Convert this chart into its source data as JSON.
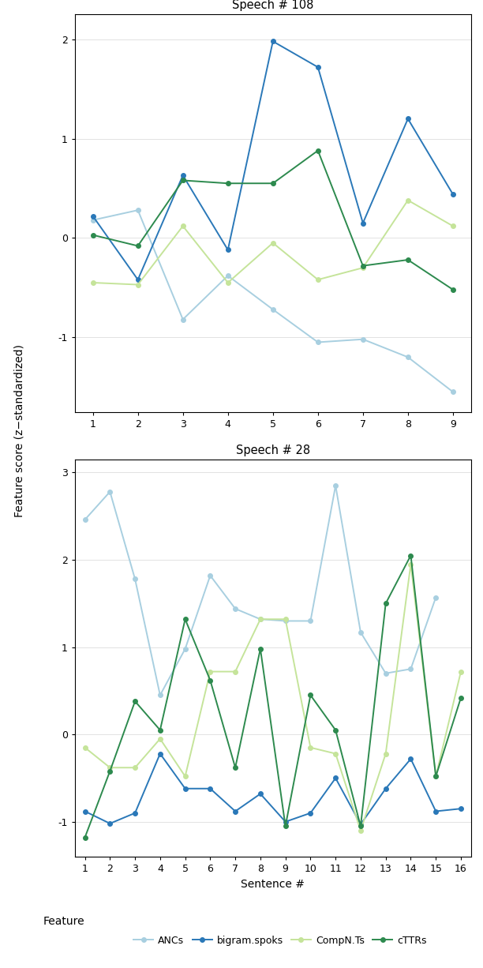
{
  "speech108": {
    "title": "Speech # 108",
    "x": [
      1,
      2,
      3,
      4,
      5,
      6,
      7,
      8,
      9
    ],
    "ANCs": [
      0.18,
      0.28,
      -0.82,
      -0.38,
      -0.72,
      -1.05,
      -1.02,
      -1.2,
      -1.55
    ],
    "bigram.spoks": [
      0.22,
      -0.42,
      0.63,
      -0.12,
      1.98,
      1.72,
      0.15,
      1.2,
      0.44
    ],
    "CompN.Ts": [
      -0.45,
      -0.47,
      0.12,
      -0.45,
      -0.05,
      -0.42,
      -0.3,
      0.38,
      0.12
    ],
    "cTTRs": [
      0.03,
      -0.08,
      0.58,
      0.55,
      0.55,
      0.88,
      -0.28,
      -0.22,
      -0.52
    ],
    "ylim": [
      -1.75,
      2.25
    ],
    "yticks": [
      -1,
      0,
      1,
      2
    ],
    "xlim": [
      0.6,
      9.4
    ],
    "xticks": [
      1,
      2,
      3,
      4,
      5,
      6,
      7,
      8,
      9
    ]
  },
  "speech28": {
    "title": "Speech # 28",
    "x": [
      1,
      2,
      3,
      4,
      5,
      6,
      7,
      8,
      9,
      10,
      11,
      12,
      13,
      14,
      15,
      16
    ],
    "ANCs": [
      2.46,
      2.78,
      1.78,
      0.45,
      0.98,
      1.82,
      1.44,
      1.32,
      1.3,
      1.3,
      2.85,
      1.17,
      0.7,
      0.75,
      1.57,
      null
    ],
    "bigram.spoks": [
      -0.88,
      -1.02,
      -0.9,
      -0.22,
      -0.62,
      -0.62,
      -0.88,
      -0.68,
      -1.0,
      -0.9,
      -0.5,
      -1.03,
      -0.62,
      -0.28,
      -0.88,
      -0.85
    ],
    "CompN.Ts": [
      -0.15,
      -0.38,
      -0.38,
      -0.05,
      -0.48,
      0.72,
      0.72,
      1.32,
      1.32,
      -0.15,
      -0.22,
      -1.1,
      -0.22,
      1.95,
      -0.48,
      0.72
    ],
    "cTTRs": [
      -1.18,
      -0.42,
      0.38,
      0.05,
      1.32,
      0.62,
      -0.38,
      0.98,
      -1.05,
      0.45,
      0.05,
      -1.05,
      1.5,
      2.05,
      -0.48,
      0.42
    ],
    "ylim": [
      -1.4,
      3.15
    ],
    "yticks": [
      -1,
      0,
      1,
      2,
      3
    ],
    "xlim": [
      0.6,
      16.4
    ],
    "xticks": [
      1,
      2,
      3,
      4,
      5,
      6,
      7,
      8,
      9,
      10,
      11,
      12,
      13,
      14,
      15,
      16
    ]
  },
  "colors": {
    "ANCs": "#a8cfe0",
    "bigram.spoks": "#2a78b8",
    "CompN.Ts": "#c5e49a",
    "cTTRs": "#2d8a4e"
  },
  "ylabel": "Feature score (z−standardized)",
  "xlabel": "Sentence #",
  "legend_label": "Feature",
  "features": [
    "ANCs",
    "bigram.spoks",
    "CompN.Ts",
    "cTTRs"
  ],
  "background_color": "#ffffff",
  "marker": "o",
  "markersize": 4,
  "linewidth": 1.4
}
